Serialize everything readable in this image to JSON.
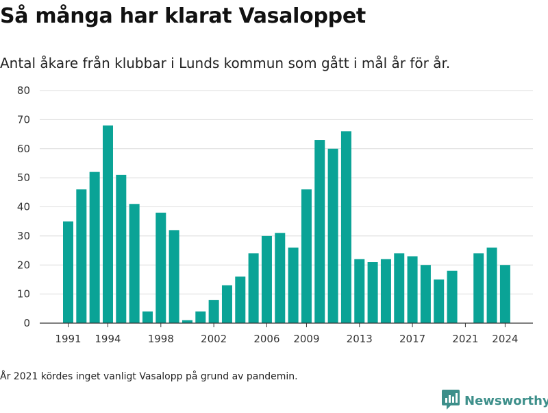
{
  "title": "Så många har klarat Vasaloppet",
  "subtitle": "Antal åkare från klubbar i Lunds kommun som gått i mål år för år.",
  "footnote": "År 2021 kördes inget vanligt Vasalopp på grund av pandemin.",
  "brand": {
    "name": "Newsworthy",
    "icon": "newsworthy-logo-icon"
  },
  "colors": {
    "bar": "#0aa396",
    "grid": "#dcdcdc",
    "axis": "#333333",
    "brand": "#3d8f8a"
  },
  "chart_data": {
    "type": "bar",
    "x": [
      1991,
      1992,
      1993,
      1994,
      1995,
      1996,
      1997,
      1998,
      1999,
      2000,
      2001,
      2002,
      2003,
      2004,
      2005,
      2006,
      2007,
      2008,
      2009,
      2010,
      2011,
      2012,
      2013,
      2014,
      2015,
      2016,
      2017,
      2018,
      2019,
      2020,
      2021,
      2022,
      2023,
      2024
    ],
    "values": [
      35,
      46,
      52,
      68,
      51,
      41,
      4,
      38,
      32,
      1,
      4,
      8,
      13,
      16,
      24,
      30,
      31,
      26,
      46,
      63,
      60,
      66,
      22,
      21,
      22,
      24,
      23,
      20,
      15,
      18,
      0,
      24,
      26,
      20
    ],
    "xticks": [
      1991,
      1994,
      1998,
      2002,
      2006,
      2009,
      2013,
      2017,
      2021,
      2024
    ],
    "yticks": [
      0,
      10,
      20,
      30,
      40,
      50,
      60,
      70,
      80
    ],
    "ylim": [
      0,
      80
    ],
    "xlabel": "",
    "ylabel": "",
    "grid": true,
    "legend": "none"
  }
}
